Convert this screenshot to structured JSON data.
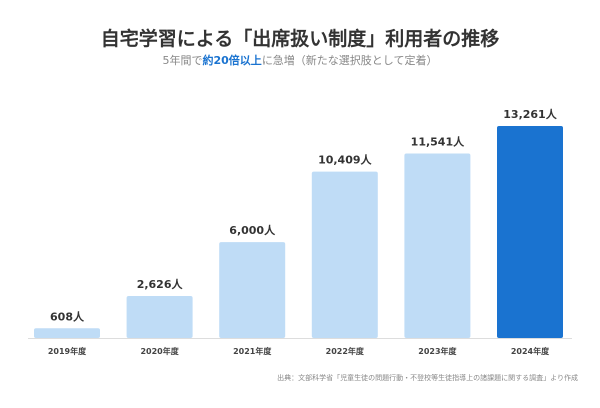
{
  "chart_data": {
    "type": "bar",
    "title": "自宅学習による「出席扱い制度」利用者の推移",
    "subtitle": {
      "before": "5年間で",
      "highlight": "約20倍以上",
      "after": "に急増（新たな選択肢として定着）"
    },
    "categories": [
      "2019年度",
      "2020年度",
      "2021年度",
      "2022年度",
      "2023年度",
      "2024年度"
    ],
    "values": [
      608,
      2626,
      6000,
      10409,
      11541,
      13261
    ],
    "data_labels": [
      "608人",
      "2,626人",
      "6,000人",
      "10,409人",
      "11,541人",
      "13,261人"
    ],
    "ylim": [
      0,
      13261
    ],
    "grid": false,
    "colors": {
      "bar": "#bfdcf6",
      "highlight_bar": "#1a73d0",
      "highlight_text": "#1a73d0"
    },
    "source": "出典：文部科学省「児童生徒の問題行動・不登校等生徒指導上の諸課題に関する調査」より作成"
  }
}
